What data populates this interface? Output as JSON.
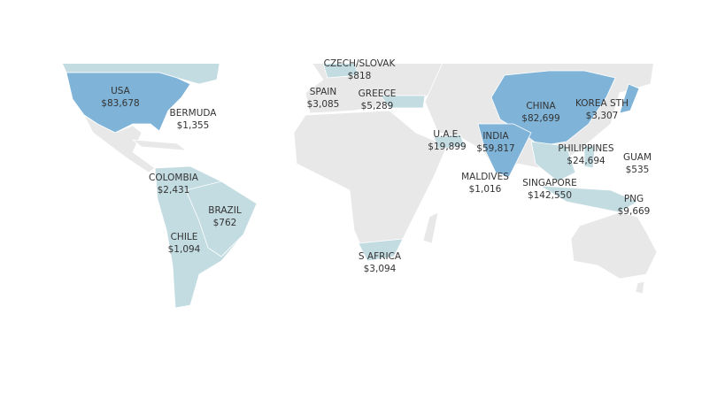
{
  "regions": [
    {
      "name": "USA",
      "value": "$83,678"
    },
    {
      "name": "BERMUDA",
      "value": "$1,355"
    },
    {
      "name": "CZECH/SLOVAK",
      "value": "$818"
    },
    {
      "name": "SPAIN",
      "value": "$3,085"
    },
    {
      "name": "GREECE",
      "value": "$5,289"
    },
    {
      "name": "U.A.E.",
      "value": "$19,899"
    },
    {
      "name": "CHINA",
      "value": "$82,699"
    },
    {
      "name": "KOREA STH",
      "value": "$3,307"
    },
    {
      "name": "INDIA",
      "value": "$59,817"
    },
    {
      "name": "PHILIPPINES",
      "value": "$24,694"
    },
    {
      "name": "GUAM",
      "value": "$535"
    },
    {
      "name": "MALDIVES",
      "value": "$1,016"
    },
    {
      "name": "SINGAPORE",
      "value": "$142,550"
    },
    {
      "name": "PNG",
      "value": "$9,669"
    },
    {
      "name": "COLOMBIA",
      "value": "$2,431"
    },
    {
      "name": "BRAZIL",
      "value": "$762"
    },
    {
      "name": "CHILE",
      "value": "$1,094"
    },
    {
      "name": "S AFRICA",
      "value": "$3,094"
    }
  ]
}
